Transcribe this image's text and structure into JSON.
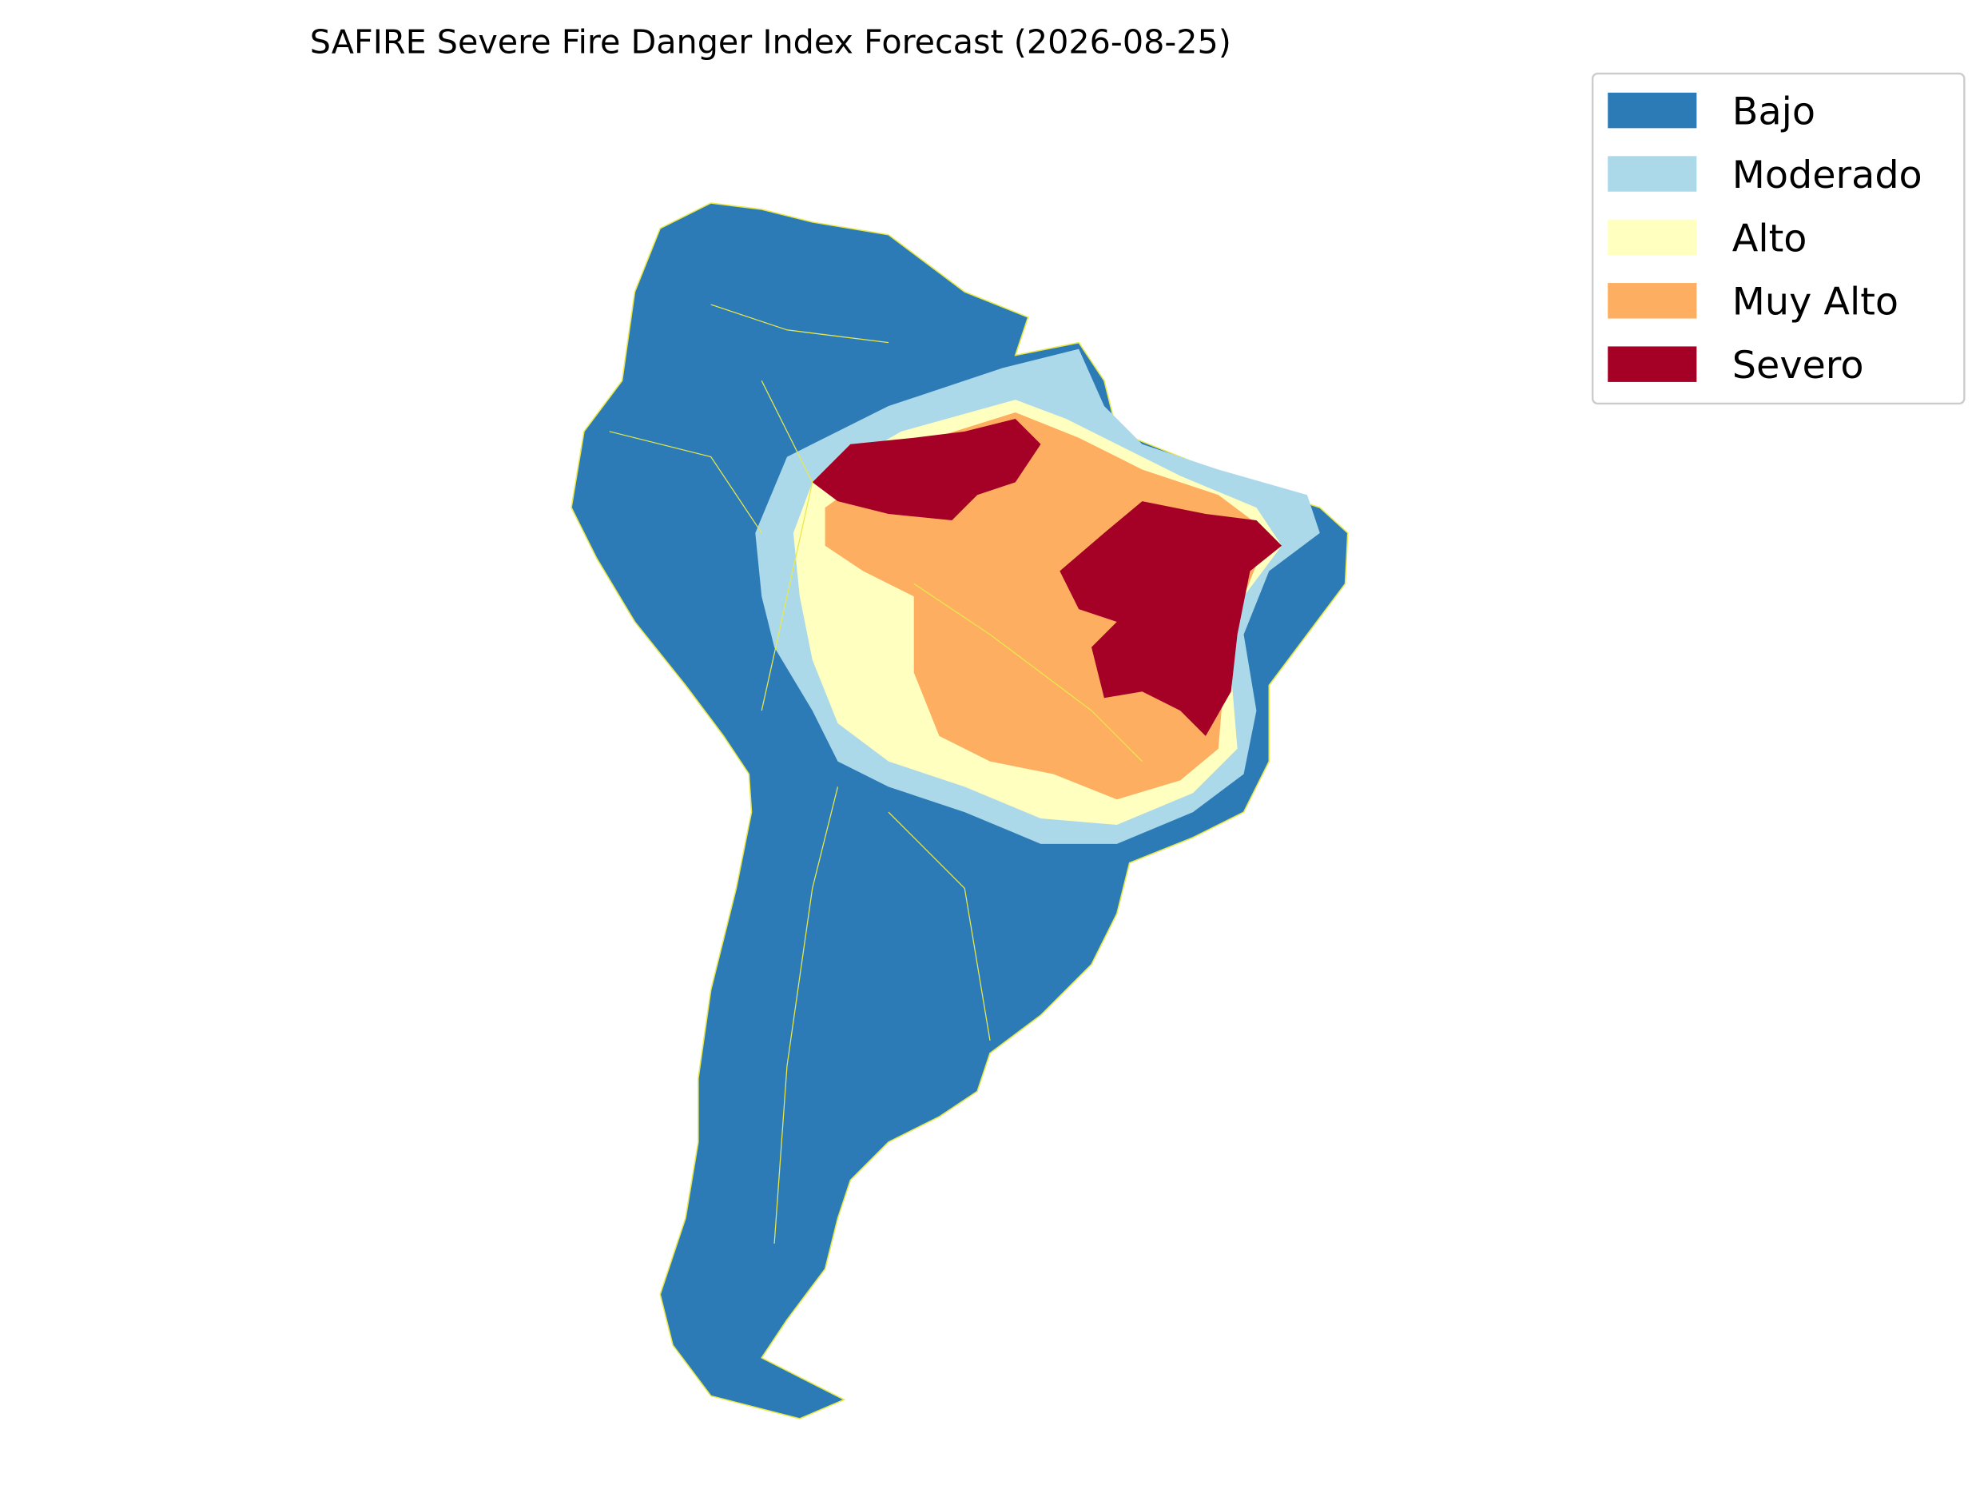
{
  "title": "SAFIRE Severe Fire Danger Index Forecast (2026-08-25)",
  "legend": [
    {
      "label": "Bajo",
      "color": "#2c7bb6"
    },
    {
      "label": "Moderado",
      "color": "#abd9e9"
    },
    {
      "label": "Alto",
      "color": "#ffffbf"
    },
    {
      "label": "Muy Alto",
      "color": "#fdae61"
    },
    {
      "label": "Severo",
      "color": "#a50026"
    }
  ]
}
